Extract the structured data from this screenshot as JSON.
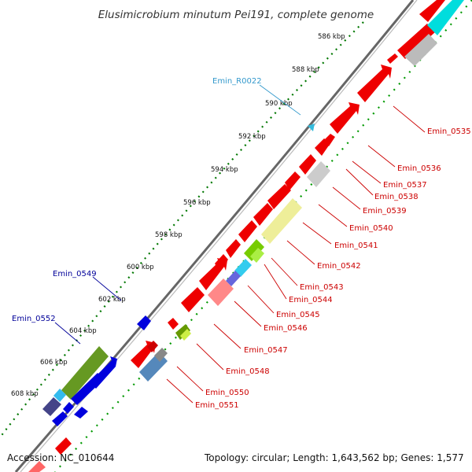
{
  "title": "Elusimicrobium minutum Pei191, complete genome",
  "footer": {
    "accession": "Accession: NC_010644",
    "summary": "Topology: circular; Length: 1,643,562 bp; Genes: 1,577"
  },
  "ticks": [
    "586 kbp",
    "588 kbp",
    "590 kbp",
    "592 kbp",
    "594 kbp",
    "596 kbp",
    "598 kbp",
    "600 kbp",
    "602 kbp",
    "604 kbp",
    "606 kbp",
    "608 kbp"
  ],
  "genes": {
    "red": [
      "Emin_0535",
      "Emin_0536",
      "Emin_0537",
      "Emin_0538",
      "Emin_0539",
      "Emin_0540",
      "Emin_0541",
      "Emin_0542",
      "Emin_0543",
      "Emin_0544",
      "Emin_0545",
      "Emin_0546",
      "Emin_0547",
      "Emin_0548",
      "Emin_0550",
      "Emin_0551"
    ],
    "blue": [
      "Emin_0549",
      "Emin_0552"
    ],
    "rna": [
      "Emin_R0022"
    ]
  },
  "colors": {
    "cds": "#ff0000",
    "reverse_cds": "#0000ff",
    "rna": "#33bbdd",
    "backbone": "#666666",
    "dotted": "#007700",
    "red_label": "#cc0000",
    "blue_label": "#000099",
    "rna_label": "#3399cc"
  }
}
